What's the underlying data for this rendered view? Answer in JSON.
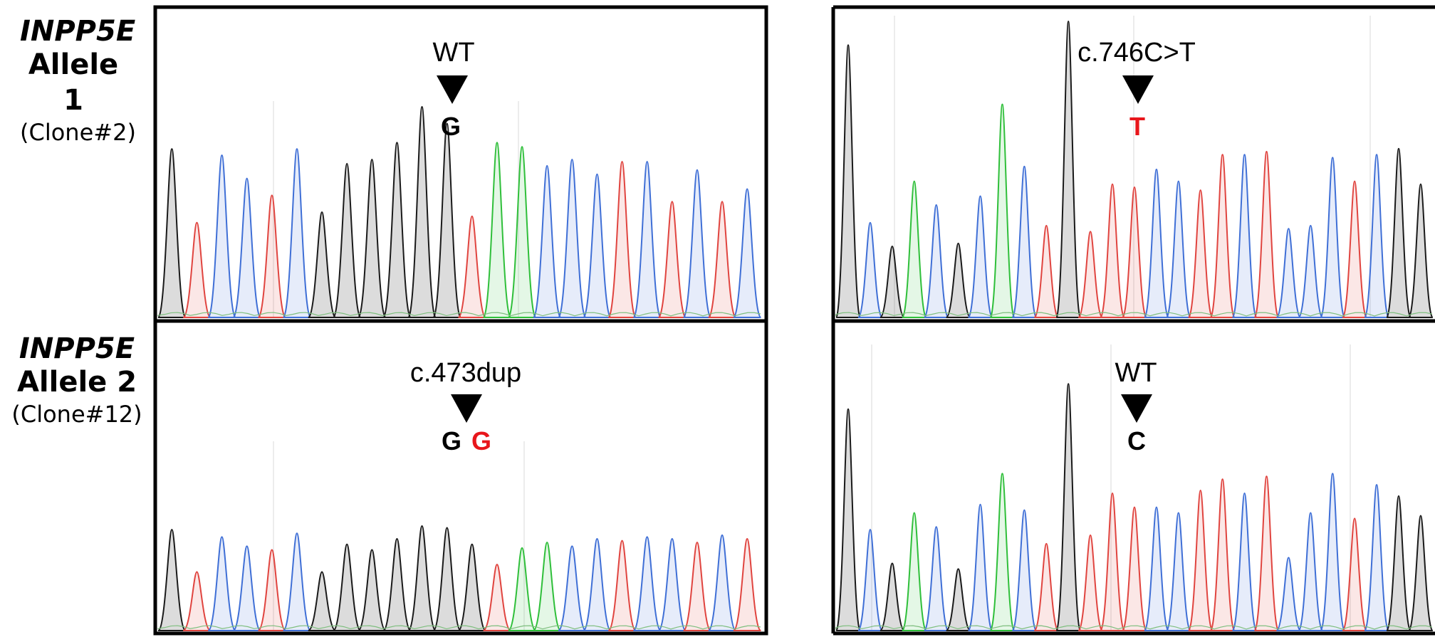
{
  "rows": [
    {
      "gene": "INPP5E",
      "allele": "Allele 1",
      "clone": "(Clone#2)"
    },
    {
      "gene": "INPP5E",
      "allele": "Allele 2",
      "clone": "(Clone#12)"
    }
  ],
  "panels": [
    {
      "annotation": "WT",
      "bases": [
        {
          "text": "G",
          "color": "#000000"
        }
      ],
      "trace": "L1"
    },
    {
      "annotation": "c.746C>T",
      "bases": [
        {
          "text": "T",
          "color": "#e8161b"
        }
      ],
      "trace": "R1"
    },
    {
      "annotation": "c.473dup",
      "bases": [
        {
          "text": "G",
          "color": "#000000"
        },
        {
          "text": "G",
          "color": "#e8161b"
        }
      ],
      "trace": "L2"
    },
    {
      "annotation": "WT",
      "bases": [
        {
          "text": "C",
          "color": "#000000"
        }
      ],
      "trace": "R2"
    }
  ],
  "colors": {
    "G": "#1a1a1a",
    "A": "#2fbf3a",
    "T": "#e0443f",
    "C": "#3f6fd6",
    "mutation": "#e8161b",
    "frame": "#000000"
  },
  "traces": {
    "L1": [
      [
        "G",
        0.8
      ],
      [
        "T",
        0.45
      ],
      [
        "C",
        0.77
      ],
      [
        "C",
        0.66
      ],
      [
        "T",
        0.58
      ],
      [
        "C",
        0.8
      ],
      [
        "G",
        0.5
      ],
      [
        "G",
        0.73
      ],
      [
        "G",
        0.75
      ],
      [
        "G",
        0.83
      ],
      [
        "G",
        1.0
      ],
      [
        "G",
        0.92
      ],
      [
        "T",
        0.48
      ],
      [
        "A",
        0.83
      ],
      [
        "A",
        0.81
      ],
      [
        "C",
        0.72
      ],
      [
        "C",
        0.75
      ],
      [
        "C",
        0.68
      ],
      [
        "T",
        0.74
      ],
      [
        "C",
        0.74
      ],
      [
        "T",
        0.55
      ],
      [
        "C",
        0.7
      ],
      [
        "T",
        0.55
      ],
      [
        "C",
        0.61
      ]
    ],
    "R1": [
      [
        "G",
        0.92
      ],
      [
        "C",
        0.32
      ],
      [
        "G",
        0.24
      ],
      [
        "A",
        0.46
      ],
      [
        "C",
        0.38
      ],
      [
        "G",
        0.25
      ],
      [
        "C",
        0.41
      ],
      [
        "A",
        0.72
      ],
      [
        "C",
        0.51
      ],
      [
        "T",
        0.31
      ],
      [
        "G",
        1.0
      ],
      [
        "T",
        0.29
      ],
      [
        "T",
        0.45
      ],
      [
        "T",
        0.44
      ],
      [
        "C",
        0.5
      ],
      [
        "C",
        0.46
      ],
      [
        "T",
        0.43
      ],
      [
        "T",
        0.55
      ],
      [
        "C",
        0.55
      ],
      [
        "T",
        0.56
      ],
      [
        "C",
        0.3
      ],
      [
        "C",
        0.31
      ],
      [
        "C",
        0.54
      ],
      [
        "T",
        0.46
      ],
      [
        "C",
        0.55
      ],
      [
        "G",
        0.57
      ],
      [
        "G",
        0.45
      ]
    ],
    "L2": [
      [
        "G",
        0.55
      ],
      [
        "T",
        0.32
      ],
      [
        "C",
        0.51
      ],
      [
        "C",
        0.46
      ],
      [
        "T",
        0.44
      ],
      [
        "C",
        0.53
      ],
      [
        "G",
        0.32
      ],
      [
        "G",
        0.47
      ],
      [
        "G",
        0.44
      ],
      [
        "G",
        0.5
      ],
      [
        "G",
        0.57
      ],
      [
        "G",
        0.56
      ],
      [
        "G",
        0.47
      ],
      [
        "T",
        0.36
      ],
      [
        "A",
        0.45
      ],
      [
        "A",
        0.48
      ],
      [
        "C",
        0.46
      ],
      [
        "C",
        0.5
      ],
      [
        "T",
        0.49
      ],
      [
        "C",
        0.51
      ],
      [
        "C",
        0.5
      ],
      [
        "T",
        0.48
      ],
      [
        "C",
        0.52
      ],
      [
        "T",
        0.5
      ]
    ],
    "R2": [
      [
        "G",
        0.79
      ],
      [
        "C",
        0.36
      ],
      [
        "G",
        0.24
      ],
      [
        "A",
        0.42
      ],
      [
        "C",
        0.37
      ],
      [
        "G",
        0.22
      ],
      [
        "C",
        0.45
      ],
      [
        "A",
        0.56
      ],
      [
        "C",
        0.43
      ],
      [
        "T",
        0.31
      ],
      [
        "G",
        0.88
      ],
      [
        "T",
        0.34
      ],
      [
        "T",
        0.49
      ],
      [
        "T",
        0.44
      ],
      [
        "C",
        0.44
      ],
      [
        "C",
        0.42
      ],
      [
        "T",
        0.5
      ],
      [
        "T",
        0.54
      ],
      [
        "C",
        0.49
      ],
      [
        "T",
        0.55
      ],
      [
        "C",
        0.26
      ],
      [
        "C",
        0.42
      ],
      [
        "C",
        0.56
      ],
      [
        "T",
        0.4
      ],
      [
        "C",
        0.52
      ],
      [
        "G",
        0.48
      ],
      [
        "G",
        0.41
      ]
    ]
  }
}
